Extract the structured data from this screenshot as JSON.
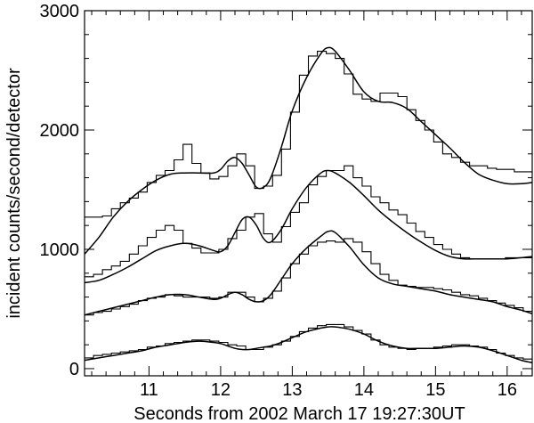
{
  "chart_data": {
    "type": "line",
    "title": "",
    "xlabel": "Seconds from 2002 March 17 19:27:30UT",
    "ylabel": "incident counts/second/detector",
    "xlim": [
      10.1,
      16.35
    ],
    "ylim": [
      -60,
      3000
    ],
    "x_ticks": [
      11,
      12,
      13,
      14,
      15,
      16
    ],
    "y_ticks": [
      0,
      1000,
      2000,
      3000
    ],
    "x_tick_labels": [
      "11",
      "12",
      "13",
      "14",
      "15",
      "16"
    ],
    "y_tick_labels": [
      "0",
      "1000",
      "2000",
      "3000"
    ],
    "grid": false,
    "legend": "none",
    "colors": {
      "line": "#000000",
      "background": "#ffffff"
    },
    "step_bin_width": 0.125,
    "series": [
      {
        "kind": "histogram",
        "x": [
          10.1,
          10.225,
          10.35,
          10.475,
          10.6,
          10.725,
          10.85,
          10.975,
          11.1,
          11.225,
          11.35,
          11.475,
          11.6,
          11.725,
          11.85,
          11.975,
          12.1,
          12.225,
          12.35,
          12.475,
          12.6,
          12.725,
          12.85,
          12.975,
          13.1,
          13.225,
          13.35,
          13.475,
          13.6,
          13.725,
          13.85,
          13.975,
          14.1,
          14.225,
          14.35,
          14.475,
          14.6,
          14.725,
          14.85,
          14.975,
          15.1,
          15.225,
          15.35,
          15.475,
          15.6,
          15.725,
          15.85,
          15.975,
          16.1,
          16.225
        ],
        "y": [
          1270,
          1270,
          1280,
          1340,
          1390,
          1430,
          1480,
          1560,
          1620,
          1660,
          1750,
          1880,
          1720,
          1640,
          1590,
          1610,
          1700,
          1800,
          1700,
          1510,
          1530,
          1620,
          1840,
          2150,
          2460,
          2620,
          2660,
          2640,
          2600,
          2470,
          2300,
          2260,
          2240,
          2310,
          2310,
          2280,
          2170,
          2080,
          2000,
          1900,
          1800,
          1770,
          1730,
          1700,
          1700,
          1680,
          1670,
          1670,
          1650,
          1650
        ]
      },
      {
        "kind": "fit",
        "x": [
          10.1,
          10.3,
          10.5,
          10.7,
          10.9,
          11.1,
          11.3,
          11.5,
          11.7,
          11.9,
          12.0,
          12.1,
          12.2,
          12.3,
          12.4,
          12.5,
          12.6,
          12.7,
          12.85,
          13.0,
          13.2,
          13.4,
          13.5,
          13.6,
          13.8,
          14.0,
          14.2,
          14.4,
          14.6,
          14.8,
          15.0,
          15.2,
          15.4,
          15.6,
          15.8,
          16.0,
          16.2,
          16.35
        ],
        "y": [
          960,
          1100,
          1270,
          1400,
          1500,
          1580,
          1630,
          1640,
          1640,
          1640,
          1670,
          1740,
          1770,
          1720,
          1620,
          1520,
          1520,
          1600,
          1860,
          2160,
          2440,
          2640,
          2690,
          2660,
          2500,
          2320,
          2240,
          2230,
          2180,
          2070,
          1960,
          1850,
          1730,
          1630,
          1580,
          1550,
          1550,
          1560
        ]
      },
      {
        "kind": "histogram",
        "x": [
          10.1,
          10.225,
          10.35,
          10.475,
          10.6,
          10.725,
          10.85,
          10.975,
          11.1,
          11.225,
          11.35,
          11.475,
          11.6,
          11.725,
          11.85,
          11.975,
          12.1,
          12.225,
          12.35,
          12.475,
          12.6,
          12.725,
          12.85,
          12.975,
          13.1,
          13.225,
          13.35,
          13.475,
          13.6,
          13.725,
          13.85,
          13.975,
          14.1,
          14.225,
          14.35,
          14.475,
          14.6,
          14.725,
          14.85,
          14.975,
          15.1,
          15.225,
          15.35,
          15.475,
          15.6,
          15.725,
          15.85,
          15.975,
          16.1,
          16.225
        ],
        "y": [
          770,
          790,
          830,
          860,
          900,
          960,
          1030,
          1100,
          1160,
          1200,
          1160,
          1050,
          1010,
          970,
          970,
          1000,
          1090,
          1160,
          1270,
          1300,
          1130,
          1060,
          1190,
          1310,
          1390,
          1540,
          1610,
          1660,
          1660,
          1700,
          1600,
          1530,
          1440,
          1390,
          1330,
          1290,
          1220,
          1150,
          1100,
          1040,
          1000,
          960,
          930,
          920,
          920,
          920,
          920,
          930,
          930,
          930
        ]
      },
      {
        "kind": "fit",
        "x": [
          10.1,
          10.3,
          10.5,
          10.7,
          10.9,
          11.1,
          11.3,
          11.5,
          11.7,
          11.9,
          12.0,
          12.1,
          12.2,
          12.3,
          12.4,
          12.5,
          12.6,
          12.7,
          12.85,
          13.0,
          13.2,
          13.4,
          13.5,
          13.6,
          13.8,
          14.0,
          14.2,
          14.4,
          14.6,
          14.8,
          15.0,
          15.2,
          15.4,
          15.6,
          15.8,
          16.0,
          16.2,
          16.35
        ],
        "y": [
          720,
          740,
          790,
          850,
          920,
          990,
          1030,
          1050,
          1030,
          990,
          980,
          1030,
          1140,
          1250,
          1270,
          1200,
          1090,
          1060,
          1170,
          1340,
          1520,
          1640,
          1660,
          1640,
          1560,
          1450,
          1330,
          1230,
          1140,
          1060,
          990,
          940,
          920,
          920,
          920,
          920,
          930,
          940
        ]
      },
      {
        "kind": "histogram",
        "x": [
          10.1,
          10.225,
          10.35,
          10.475,
          10.6,
          10.725,
          10.85,
          10.975,
          11.1,
          11.225,
          11.35,
          11.475,
          11.6,
          11.725,
          11.85,
          11.975,
          12.1,
          12.225,
          12.35,
          12.475,
          12.6,
          12.725,
          12.85,
          12.975,
          13.1,
          13.225,
          13.35,
          13.475,
          13.6,
          13.725,
          13.85,
          13.975,
          14.1,
          14.225,
          14.35,
          14.475,
          14.6,
          14.725,
          14.85,
          14.975,
          15.1,
          15.225,
          15.35,
          15.475,
          15.6,
          15.725,
          15.85,
          15.975,
          16.1,
          16.225
        ],
        "y": [
          450,
          470,
          480,
          500,
          520,
          540,
          570,
          590,
          600,
          620,
          610,
          600,
          600,
          600,
          590,
          600,
          640,
          640,
          600,
          560,
          590,
          650,
          760,
          880,
          960,
          1030,
          1060,
          1070,
          1060,
          1090,
          1060,
          980,
          880,
          790,
          740,
          700,
          690,
          680,
          680,
          670,
          660,
          640,
          620,
          610,
          590,
          570,
          550,
          530,
          510,
          480
        ]
      },
      {
        "kind": "fit",
        "x": [
          10.1,
          10.3,
          10.5,
          10.7,
          10.9,
          11.1,
          11.3,
          11.5,
          11.7,
          11.9,
          12.0,
          12.1,
          12.2,
          12.3,
          12.4,
          12.5,
          12.6,
          12.7,
          12.85,
          13.0,
          13.2,
          13.4,
          13.5,
          13.6,
          13.8,
          14.0,
          14.2,
          14.4,
          14.6,
          14.8,
          15.0,
          15.2,
          15.4,
          15.6,
          15.8,
          16.0,
          16.2,
          16.35
        ],
        "y": [
          450,
          480,
          510,
          540,
          570,
          600,
          620,
          620,
          600,
          580,
          590,
          620,
          640,
          620,
          580,
          560,
          570,
          620,
          750,
          880,
          1010,
          1110,
          1150,
          1140,
          1020,
          870,
          760,
          710,
          690,
          670,
          650,
          620,
          600,
          580,
          560,
          520,
          490,
          460
        ]
      },
      {
        "kind": "histogram",
        "x": [
          10.1,
          10.225,
          10.35,
          10.475,
          10.6,
          10.725,
          10.85,
          10.975,
          11.1,
          11.225,
          11.35,
          11.475,
          11.6,
          11.725,
          11.85,
          11.975,
          12.1,
          12.225,
          12.35,
          12.475,
          12.6,
          12.725,
          12.85,
          12.975,
          13.1,
          13.225,
          13.35,
          13.475,
          13.6,
          13.725,
          13.85,
          13.975,
          14.1,
          14.225,
          14.35,
          14.475,
          14.6,
          14.725,
          14.85,
          14.975,
          15.1,
          15.225,
          15.35,
          15.475,
          15.6,
          15.725,
          15.85,
          15.975,
          16.1,
          16.225
        ],
        "y": [
          90,
          110,
          120,
          130,
          140,
          150,
          160,
          180,
          190,
          210,
          220,
          230,
          240,
          240,
          230,
          220,
          200,
          190,
          160,
          160,
          180,
          200,
          230,
          270,
          310,
          340,
          360,
          370,
          370,
          350,
          320,
          290,
          240,
          200,
          180,
          170,
          160,
          170,
          170,
          180,
          190,
          200,
          200,
          190,
          180,
          160,
          130,
          110,
          90,
          80
        ]
      },
      {
        "kind": "fit",
        "x": [
          10.1,
          10.3,
          10.5,
          10.7,
          10.9,
          11.1,
          11.3,
          11.5,
          11.7,
          11.9,
          12.0,
          12.1,
          12.2,
          12.3,
          12.4,
          12.5,
          12.6,
          12.7,
          12.85,
          13.0,
          13.2,
          13.4,
          13.5,
          13.6,
          13.8,
          14.0,
          14.2,
          14.4,
          14.6,
          14.8,
          15.0,
          15.2,
          15.4,
          15.6,
          15.8,
          16.0,
          16.2,
          16.35
        ],
        "y": [
          70,
          90,
          110,
          130,
          150,
          180,
          200,
          220,
          230,
          220,
          210,
          190,
          170,
          160,
          160,
          170,
          180,
          190,
          220,
          260,
          310,
          340,
          350,
          350,
          330,
          290,
          230,
          190,
          170,
          170,
          170,
          180,
          190,
          180,
          150,
          110,
          70,
          50
        ]
      }
    ]
  }
}
